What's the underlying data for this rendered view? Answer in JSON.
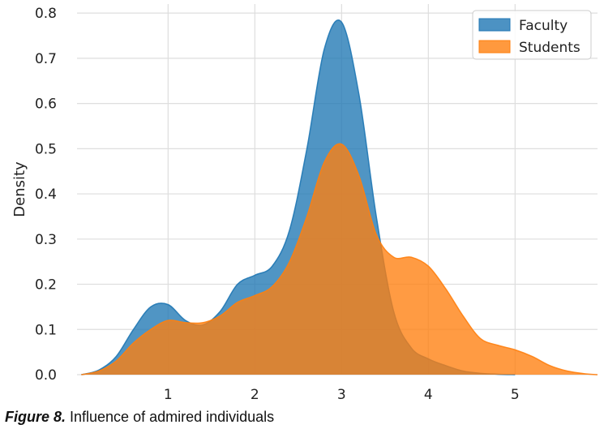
{
  "chart_data": {
    "type": "area",
    "title": "",
    "xlabel": "",
    "ylabel": "Density",
    "xlim": [
      -0.05,
      5.95
    ],
    "ylim": [
      0,
      0.82
    ],
    "xticks": [
      1,
      2,
      3,
      4,
      5
    ],
    "yticks": [
      0.0,
      0.1,
      0.2,
      0.3,
      0.4,
      0.5,
      0.6,
      0.7,
      0.8
    ],
    "ytick_labels": [
      "0.0",
      "0.1",
      "0.2",
      "0.3",
      "0.4",
      "0.5",
      "0.6",
      "0.7",
      "0.8"
    ],
    "grid": true,
    "legend_position": "top-right",
    "series": [
      {
        "name": "Faculty",
        "color": "#1f77b4",
        "x": [
          0.0,
          0.2,
          0.4,
          0.6,
          0.8,
          1.0,
          1.2,
          1.4,
          1.6,
          1.8,
          2.0,
          2.2,
          2.4,
          2.6,
          2.8,
          3.0,
          3.2,
          3.4,
          3.6,
          3.8,
          4.0,
          4.2,
          4.4,
          4.6,
          4.8,
          5.0
        ],
        "values": [
          0.0,
          0.01,
          0.04,
          0.1,
          0.15,
          0.155,
          0.12,
          0.11,
          0.14,
          0.2,
          0.22,
          0.24,
          0.32,
          0.5,
          0.72,
          0.78,
          0.62,
          0.35,
          0.14,
          0.06,
          0.035,
          0.02,
          0.008,
          0.003,
          0.001,
          0.0
        ]
      },
      {
        "name": "Students",
        "color": "#ff7f0e",
        "x": [
          0.0,
          0.2,
          0.4,
          0.6,
          0.8,
          1.0,
          1.2,
          1.4,
          1.6,
          1.8,
          2.0,
          2.2,
          2.4,
          2.6,
          2.8,
          3.0,
          3.2,
          3.4,
          3.6,
          3.8,
          4.0,
          4.2,
          4.4,
          4.6,
          4.8,
          5.0,
          5.2,
          5.4,
          5.6,
          5.8,
          5.95
        ],
        "values": [
          0.0,
          0.008,
          0.03,
          0.07,
          0.1,
          0.12,
          0.115,
          0.115,
          0.13,
          0.16,
          0.175,
          0.195,
          0.25,
          0.35,
          0.47,
          0.51,
          0.44,
          0.31,
          0.26,
          0.26,
          0.24,
          0.19,
          0.13,
          0.08,
          0.065,
          0.055,
          0.04,
          0.02,
          0.008,
          0.002,
          0.0
        ]
      }
    ]
  },
  "caption": {
    "label": "Figure 8.",
    "text": " Influence of admired individuals"
  }
}
